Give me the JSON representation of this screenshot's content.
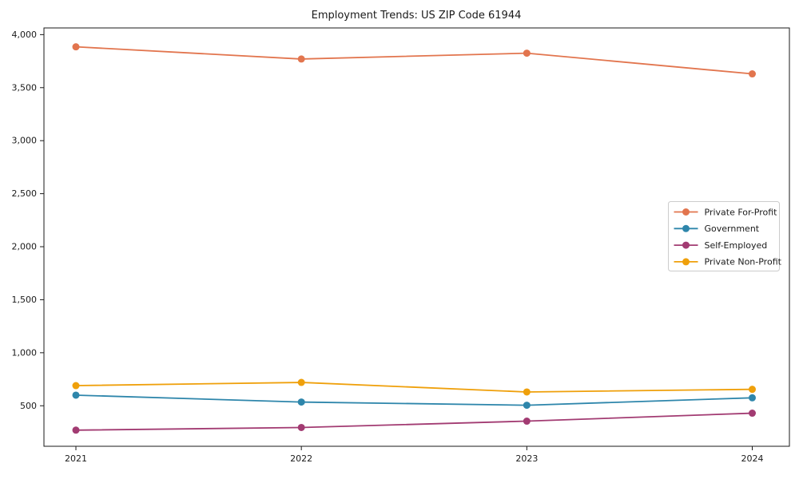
{
  "chart_data": {
    "type": "line",
    "title": "Employment Trends: US ZIP Code 61944",
    "categories": [
      "2021",
      "2022",
      "2023",
      "2024"
    ],
    "series": [
      {
        "name": "Private For-Profit",
        "color": "#E2754E",
        "values": [
          3885,
          3770,
          3825,
          3630
        ]
      },
      {
        "name": "Government",
        "color": "#2E86AB",
        "values": [
          600,
          535,
          505,
          575
        ]
      },
      {
        "name": "Self-Employed",
        "color": "#A23B72",
        "values": [
          270,
          295,
          355,
          430
        ]
      },
      {
        "name": "Private Non-Profit",
        "color": "#EFA00B",
        "values": [
          690,
          720,
          630,
          655
        ]
      }
    ],
    "xlabel": "",
    "ylabel": "",
    "ylim": [
      118,
      4063
    ],
    "yticks": [
      500,
      1000,
      1500,
      2000,
      2500,
      3000,
      3500,
      4000
    ],
    "ytick_labels": [
      "500",
      "1,000",
      "1,500",
      "2,000",
      "2,500",
      "3,000",
      "3,500",
      "4,000"
    ],
    "grid": false,
    "legend_position": "center right",
    "marker": "o",
    "axis_color": "#1a1a1a",
    "legend_border_color": "#cccccc"
  }
}
